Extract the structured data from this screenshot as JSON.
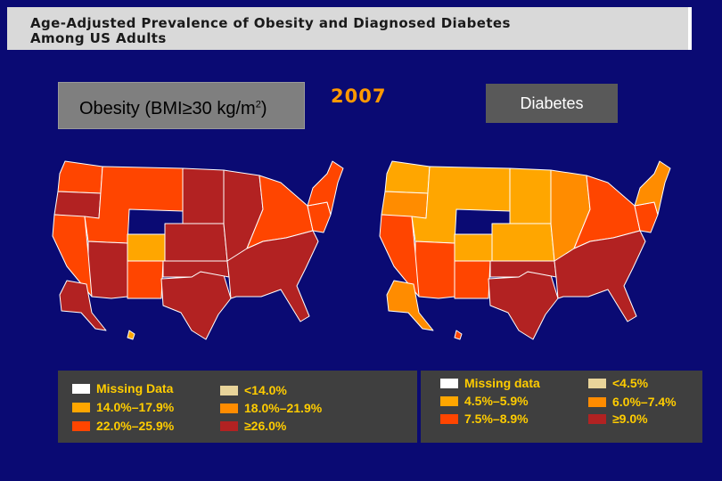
{
  "title": {
    "line1": "Age-Adjusted Prevalence of Obesity and Diagnosed Diabetes",
    "line2": "Among US Adults"
  },
  "year": "2007",
  "obesity_panel": {
    "label_text": "Obesity (BMI≥30 kg/m",
    "label_sup": "2",
    "label_close": ")",
    "legend": [
      {
        "text": "Missing Data",
        "color": "#ffffff"
      },
      {
        "text": "<14.0%",
        "color": "#e8d49a"
      },
      {
        "text": "14.0%–17.9%",
        "color": "#ffa600"
      },
      {
        "text": "18.0%–21.9%",
        "color": "#ff8c00"
      },
      {
        "text": "22.0%–25.9%",
        "color": "#ff4500"
      },
      {
        "text": "≥26.0%",
        "color": "#b22222"
      }
    ]
  },
  "diabetes_panel": {
    "label": "Diabetes",
    "legend": [
      {
        "text": "Missing data",
        "color": "#ffffff"
      },
      {
        "text": "<4.5%",
        "color": "#e8d49a"
      },
      {
        "text": "4.5%–5.9%",
        "color": "#ffa600"
      },
      {
        "text": "6.0%–7.4%",
        "color": "#ff8c00"
      },
      {
        "text": "7.5%–8.9%",
        "color": "#ff4500"
      },
      {
        "text": "≥9.0%",
        "color": "#b22222"
      }
    ]
  },
  "colors": {
    "background": "#0a0a73",
    "state_border": "#ffffff",
    "missing": "#ffffff",
    "lt_low": "#e8d49a",
    "light_orange": "#ffa600",
    "orange": "#ff8c00",
    "red_orange": "#ff4500",
    "dark_red": "#b22222"
  },
  "maps": {
    "obesity_regions": [
      {
        "region": "pacific-northwest",
        "class": "red_orange"
      },
      {
        "region": "oregon",
        "class": "dark_red"
      },
      {
        "region": "california",
        "class": "red_orange"
      },
      {
        "region": "mountain-north",
        "class": "red_orange"
      },
      {
        "region": "colorado",
        "class": "light_orange"
      },
      {
        "region": "southwest",
        "class": "dark_red"
      },
      {
        "region": "new-mexico",
        "class": "red_orange"
      },
      {
        "region": "plains-north",
        "class": "dark_red"
      },
      {
        "region": "plains-central",
        "class": "dark_red"
      },
      {
        "region": "texas",
        "class": "dark_red"
      },
      {
        "region": "oklahoma",
        "class": "dark_red"
      },
      {
        "region": "midwest",
        "class": "dark_red"
      },
      {
        "region": "great-lakes",
        "class": "red_orange"
      },
      {
        "region": "southeast",
        "class": "dark_red"
      },
      {
        "region": "mid-atlantic",
        "class": "red_orange"
      },
      {
        "region": "northeast",
        "class": "red_orange"
      },
      {
        "region": "alaska",
        "class": "dark_red"
      },
      {
        "region": "hawaii",
        "class": "light_orange"
      }
    ],
    "diabetes_regions": [
      {
        "region": "pacific-northwest",
        "class": "light_orange"
      },
      {
        "region": "oregon",
        "class": "orange"
      },
      {
        "region": "california",
        "class": "red_orange"
      },
      {
        "region": "mountain-north",
        "class": "light_orange"
      },
      {
        "region": "colorado",
        "class": "light_orange"
      },
      {
        "region": "southwest",
        "class": "red_orange"
      },
      {
        "region": "new-mexico",
        "class": "red_orange"
      },
      {
        "region": "plains-north",
        "class": "light_orange"
      },
      {
        "region": "plains-central",
        "class": "light_orange"
      },
      {
        "region": "texas",
        "class": "dark_red"
      },
      {
        "region": "oklahoma",
        "class": "dark_red"
      },
      {
        "region": "midwest",
        "class": "orange"
      },
      {
        "region": "great-lakes",
        "class": "red_orange"
      },
      {
        "region": "southeast",
        "class": "dark_red"
      },
      {
        "region": "mid-atlantic",
        "class": "red_orange"
      },
      {
        "region": "northeast",
        "class": "orange"
      },
      {
        "region": "alaska",
        "class": "orange"
      },
      {
        "region": "hawaii",
        "class": "red_orange"
      }
    ]
  }
}
